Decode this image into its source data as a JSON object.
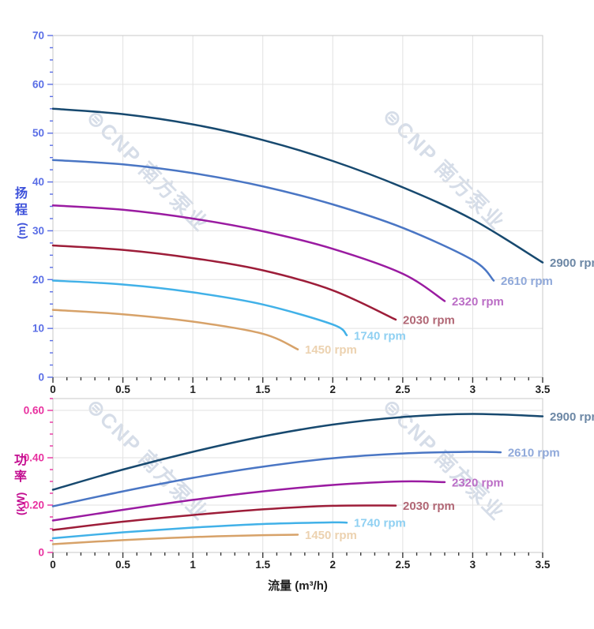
{
  "watermark": {
    "logo_glyph": "⊜",
    "text": "CNP 南方泵业",
    "color": "#aebdd3"
  },
  "axis_colors": {
    "head_axis_ticks": "#5a6ee6",
    "head_axis_title": "#3c50da",
    "power_axis_ticks": "#e8309f",
    "power_axis_title": "#c30d90",
    "x_axis_ticks": "#3a3a3a",
    "x_axis_labels": "#1f1f1f",
    "grid": "#e2e2e2",
    "border": "#c9c9c9"
  },
  "chart_data": [
    {
      "type": "line",
      "title": "",
      "ylabel_chars": [
        "扬",
        "程"
      ],
      "ylabel_unit": "(m)",
      "ylabel_text": "扬程 (m)",
      "xlabel": "",
      "xlim": [
        0,
        3.5
      ],
      "ylim": [
        0,
        70
      ],
      "x_tick_values": [
        0,
        0.5,
        1,
        1.5,
        2,
        2.5,
        3,
        3.5
      ],
      "x_tick_labels": [
        "0",
        "0.5",
        "1",
        "1.5",
        "2",
        "2.5",
        "3",
        "3.5"
      ],
      "x_minor_step": 0.1,
      "y_tick_values": [
        0,
        10,
        20,
        30,
        40,
        50,
        60,
        70
      ],
      "y_tick_labels": [
        "0",
        "10",
        "20",
        "30",
        "40",
        "50",
        "60",
        "70"
      ],
      "y_minor_step": 2.5,
      "grid": true,
      "legend_position": "line-end-labels",
      "series": [
        {
          "name": "2900 rpm",
          "color": "#17496f",
          "label_color": "#6c87a5",
          "x": [
            0,
            0.5,
            1,
            1.5,
            2,
            2.5,
            3,
            3.5
          ],
          "y": [
            55,
            53.9,
            51.8,
            48.6,
            44.3,
            38.9,
            32.3,
            23.5
          ]
        },
        {
          "name": "2610 rpm",
          "color": "#4a76c4",
          "label_color": "#90a9da",
          "x": [
            0,
            0.5,
            1,
            1.5,
            2,
            2.5,
            3,
            3.15
          ],
          "y": [
            44.5,
            43.6,
            41.8,
            39.1,
            35.4,
            30.6,
            24.0,
            19.8
          ]
        },
        {
          "name": "2320 rpm",
          "color": "#9a1ba1",
          "label_color": "#bb6ec6",
          "x": [
            0,
            0.5,
            1,
            1.5,
            2,
            2.5,
            2.8
          ],
          "y": [
            35.2,
            34.3,
            32.5,
            29.9,
            26.3,
            21.2,
            15.6
          ]
        },
        {
          "name": "2030 rpm",
          "color": "#9d1d39",
          "label_color": "#b16775",
          "x": [
            0,
            0.5,
            1,
            1.5,
            2,
            2.45
          ],
          "y": [
            27,
            26.1,
            24.4,
            21.9,
            17.8,
            11.8
          ]
        },
        {
          "name": "1740 rpm",
          "color": "#41b1e8",
          "label_color": "#8fd0f2",
          "x": [
            0,
            0.5,
            1,
            1.5,
            2,
            2.1
          ],
          "y": [
            19.8,
            19.0,
            17.4,
            14.9,
            10.8,
            8.6
          ]
        },
        {
          "name": "1450 rpm",
          "color": "#d7a269",
          "label_color": "#ecd2b0",
          "x": [
            0,
            0.5,
            1,
            1.5,
            1.75
          ],
          "y": [
            13.8,
            12.9,
            11.4,
            8.9,
            5.7
          ]
        }
      ]
    },
    {
      "type": "line",
      "title": "",
      "ylabel_chars": [
        "功",
        "率"
      ],
      "ylabel_unit": "(kW)",
      "ylabel_text": "功率 (kW)",
      "xlabel": "流量 (m³/h)",
      "xlim": [
        0,
        3.5
      ],
      "ylim": [
        0,
        0.65
      ],
      "x_tick_values": [
        0,
        0.5,
        1,
        1.5,
        2,
        2.5,
        3,
        3.5
      ],
      "x_tick_labels": [
        "0",
        "0.5",
        "1",
        "1.5",
        "2",
        "2.5",
        "3",
        "3.5"
      ],
      "x_minor_step": 0.1,
      "y_tick_values": [
        0,
        0.2,
        0.4,
        0.6
      ],
      "y_tick_labels": [
        "0",
        "0.20",
        "0.40",
        "0.60"
      ],
      "y_minor_step": 0.05,
      "grid": true,
      "legend_position": "line-end-labels",
      "series": [
        {
          "name": "2900 rpm",
          "color": "#17496f",
          "label_color": "#6c87a5",
          "x": [
            0,
            0.5,
            1,
            1.5,
            2,
            2.5,
            3,
            3.5
          ],
          "y": [
            0.265,
            0.35,
            0.425,
            0.49,
            0.54,
            0.572,
            0.585,
            0.575
          ]
        },
        {
          "name": "2610 rpm",
          "color": "#4a76c4",
          "label_color": "#90a9da",
          "x": [
            0,
            0.5,
            1,
            1.5,
            2,
            2.5,
            3,
            3.2
          ],
          "y": [
            0.195,
            0.258,
            0.315,
            0.362,
            0.398,
            0.418,
            0.425,
            0.423
          ]
        },
        {
          "name": "2320 rpm",
          "color": "#9a1ba1",
          "label_color": "#bb6ec6",
          "x": [
            0,
            0.5,
            1,
            1.5,
            2,
            2.5,
            2.8
          ],
          "y": [
            0.135,
            0.18,
            0.222,
            0.258,
            0.285,
            0.3,
            0.297
          ]
        },
        {
          "name": "2030 rpm",
          "color": "#9d1d39",
          "label_color": "#b16775",
          "x": [
            0,
            0.5,
            1,
            1.5,
            2,
            2.45
          ],
          "y": [
            0.095,
            0.13,
            0.158,
            0.182,
            0.197,
            0.198
          ]
        },
        {
          "name": "1740 rpm",
          "color": "#41b1e8",
          "label_color": "#8fd0f2",
          "x": [
            0,
            0.5,
            1,
            1.5,
            2,
            2.1
          ],
          "y": [
            0.06,
            0.085,
            0.105,
            0.12,
            0.127,
            0.126
          ]
        },
        {
          "name": "1450 rpm",
          "color": "#d7a269",
          "label_color": "#ecd2b0",
          "x": [
            0,
            0.5,
            1,
            1.5,
            1.75
          ],
          "y": [
            0.035,
            0.052,
            0.065,
            0.073,
            0.075
          ]
        }
      ]
    }
  ]
}
